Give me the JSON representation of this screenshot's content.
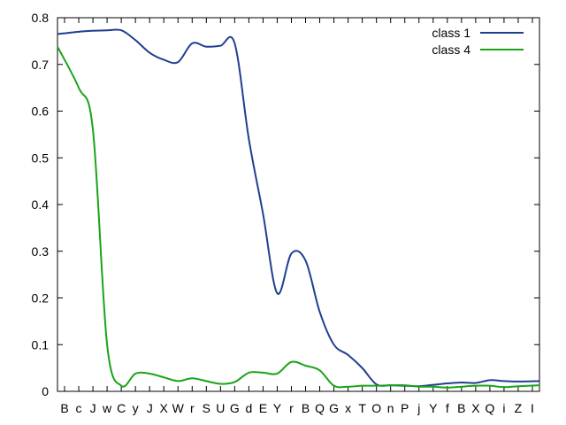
{
  "chart_data": {
    "type": "line",
    "title": "",
    "xlabel": "",
    "ylabel": "",
    "ylim": [
      0,
      0.8
    ],
    "yticks": [
      "0",
      "0.1",
      "0.2",
      "0.3",
      "0.4",
      "0.5",
      "0.6",
      "0.7",
      "0.8"
    ],
    "grid": false,
    "legend_position": "top-right",
    "categories": [
      "B",
      "c",
      "J",
      "w",
      "C",
      "y",
      "J",
      "X",
      "W",
      "r",
      "S",
      "U",
      "G",
      "d",
      "E",
      "Y",
      "r",
      "B",
      "Q",
      "G",
      "x",
      "T",
      "O",
      "n",
      "P",
      "j",
      "Y",
      "f",
      "B",
      "X",
      "Q",
      "i",
      "Z",
      "I"
    ],
    "series": [
      {
        "name": "class 1",
        "color": "#1f3f8f",
        "values": [
          0.765,
          0.77,
          0.772,
          0.773,
          0.773,
          0.752,
          0.725,
          0.71,
          0.705,
          0.745,
          0.738,
          0.74,
          0.745,
          0.54,
          0.38,
          0.21,
          0.295,
          0.28,
          0.17,
          0.1,
          0.078,
          0.05,
          0.015,
          0.013,
          0.012,
          0.011,
          0.014,
          0.017,
          0.019,
          0.018,
          0.024,
          0.022,
          0.021,
          0.022
        ]
      },
      {
        "name": "class 4",
        "color": "#1aa31a",
        "values": [
          0.738,
          0.65,
          0.56,
          0.1,
          0.012,
          0.038,
          0.038,
          0.03,
          0.022,
          0.028,
          0.022,
          0.016,
          0.02,
          0.04,
          0.04,
          0.038,
          0.063,
          0.055,
          0.045,
          0.012,
          0.01,
          0.012,
          0.012,
          0.013,
          0.013,
          0.01,
          0.01,
          0.008,
          0.01,
          0.012,
          0.012,
          0.009,
          0.011,
          0.013
        ]
      }
    ]
  }
}
